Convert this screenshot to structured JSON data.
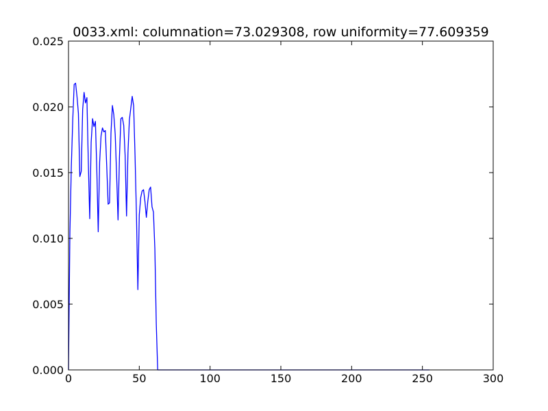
{
  "chart_data": {
    "type": "line",
    "title": "0033.xml: columnation=73.029308, row uniformity=77.609359",
    "xlabel": "",
    "ylabel": "",
    "xlim": [
      0,
      300
    ],
    "ylim": [
      0,
      0.025
    ],
    "xticks": [
      0,
      50,
      100,
      150,
      200,
      250,
      300
    ],
    "xtick_labels": [
      "0",
      "50",
      "100",
      "150",
      "200",
      "250",
      "300"
    ],
    "yticks": [
      0,
      0.005,
      0.01,
      0.015,
      0.02,
      0.025
    ],
    "ytick_labels": [
      "0.000",
      "0.005",
      "0.010",
      "0.015",
      "0.020",
      "0.025"
    ],
    "grid": false,
    "legend": false,
    "series": [
      {
        "color": "#0000ff",
        "x": [
          0,
          1,
          2,
          3,
          4,
          5,
          6,
          7,
          8,
          9,
          10,
          11,
          12,
          13,
          14,
          15,
          16,
          17,
          18,
          19,
          20,
          21,
          22,
          23,
          24,
          25,
          26,
          27,
          28,
          29,
          30,
          31,
          32,
          33,
          34,
          35,
          36,
          37,
          38,
          39,
          40,
          41,
          42,
          43,
          44,
          45,
          46,
          47,
          48,
          49,
          50,
          51,
          52,
          53,
          54,
          55,
          56,
          57,
          58,
          59,
          60,
          61,
          62,
          63,
          64,
          65,
          100,
          150,
          200,
          255
        ],
        "y": [
          0.0,
          0.0105,
          0.0155,
          0.019,
          0.0217,
          0.0218,
          0.0208,
          0.0195,
          0.0147,
          0.0151,
          0.0198,
          0.0211,
          0.0203,
          0.0207,
          0.0158,
          0.0115,
          0.0173,
          0.0191,
          0.0185,
          0.0189,
          0.0152,
          0.0105,
          0.0158,
          0.0178,
          0.0184,
          0.0181,
          0.0182,
          0.0155,
          0.0126,
          0.0127,
          0.018,
          0.0201,
          0.0194,
          0.0179,
          0.0148,
          0.0114,
          0.0162,
          0.0191,
          0.0192,
          0.0186,
          0.0163,
          0.0117,
          0.0165,
          0.019,
          0.0199,
          0.0208,
          0.0201,
          0.0163,
          0.0118,
          0.0061,
          0.0118,
          0.0131,
          0.0136,
          0.0137,
          0.0128,
          0.0116,
          0.0128,
          0.0137,
          0.0139,
          0.0124,
          0.012,
          0.0092,
          0.0035,
          0.0,
          0.0,
          0.0,
          0.0,
          0.0,
          0.0,
          0.0
        ]
      }
    ]
  }
}
